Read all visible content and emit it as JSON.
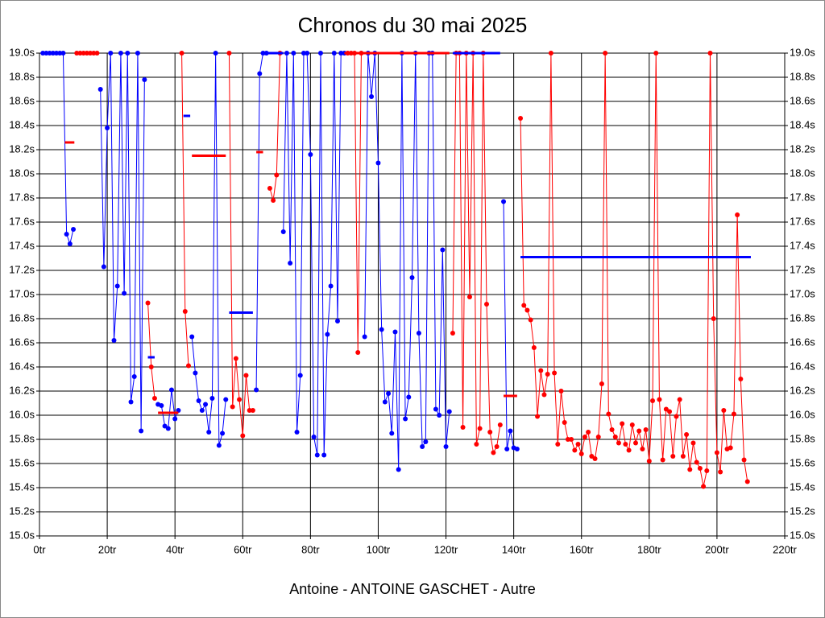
{
  "chart_data": {
    "type": "line",
    "title": "Chronos du 30 mai 2025",
    "x_label": "Antoine - ANTOINE GASCHET - Autre",
    "xlim": [
      0,
      220
    ],
    "ylim": [
      15.0,
      19.0
    ],
    "grid": true,
    "right_axis": true,
    "xticks": [
      {
        "value": 0,
        "label": "0tr"
      },
      {
        "value": 20,
        "label": "20tr"
      },
      {
        "value": 40,
        "label": "40tr"
      },
      {
        "value": 60,
        "label": "60tr"
      },
      {
        "value": 80,
        "label": "80tr"
      },
      {
        "value": 100,
        "label": "100tr"
      },
      {
        "value": 120,
        "label": "120tr"
      },
      {
        "value": 140,
        "label": "140tr"
      },
      {
        "value": 160,
        "label": "160tr"
      },
      {
        "value": 180,
        "label": "180tr"
      },
      {
        "value": 200,
        "label": "200tr"
      },
      {
        "value": 220,
        "label": "220tr"
      }
    ],
    "yticks": [
      {
        "value": 15.0,
        "label": "15.0s"
      },
      {
        "value": 15.2,
        "label": "15.2s"
      },
      {
        "value": 15.4,
        "label": "15.4s"
      },
      {
        "value": 15.6,
        "label": "15.6s"
      },
      {
        "value": 15.8,
        "label": "15.8s"
      },
      {
        "value": 16.0,
        "label": "16.0s"
      },
      {
        "value": 16.2,
        "label": "16.2s"
      },
      {
        "value": 16.4,
        "label": "16.4s"
      },
      {
        "value": 16.6,
        "label": "16.6s"
      },
      {
        "value": 16.8,
        "label": "16.8s"
      },
      {
        "value": 17.0,
        "label": "17.0s"
      },
      {
        "value": 17.2,
        "label": "17.2s"
      },
      {
        "value": 17.4,
        "label": "17.4s"
      },
      {
        "value": 17.6,
        "label": "17.6s"
      },
      {
        "value": 17.8,
        "label": "17.8s"
      },
      {
        "value": 18.0,
        "label": "18.0s"
      },
      {
        "value": 18.2,
        "label": "18.2s"
      },
      {
        "value": 18.4,
        "label": "18.4s"
      },
      {
        "value": 18.6,
        "label": "18.6s"
      },
      {
        "value": 18.8,
        "label": "18.8s"
      },
      {
        "value": 19.0,
        "label": "19.0s"
      }
    ],
    "series": [
      {
        "color": "#0000ff",
        "x": [
          1,
          2,
          3,
          4,
          5,
          6,
          7,
          8,
          9,
          10
        ],
        "values": [
          19,
          19,
          19,
          19,
          19,
          19,
          19,
          17.5,
          17.42,
          17.54
        ]
      },
      {
        "color": "#ff0000",
        "x": [
          11,
          12,
          13,
          14,
          15,
          16,
          17
        ],
        "values": [
          19,
          19,
          19,
          19,
          19,
          19,
          19
        ]
      },
      {
        "color": "#0000ff",
        "x": [
          18,
          19,
          20,
          21,
          22,
          23,
          24,
          25,
          26,
          27,
          28,
          29,
          30,
          31
        ],
        "values": [
          18.7,
          17.23,
          18.38,
          19,
          16.62,
          17.07,
          19,
          17.01,
          19,
          16.11,
          16.32,
          19,
          15.87,
          18.78
        ]
      },
      {
        "color": "#ff0000",
        "x": [
          32,
          33,
          34
        ],
        "values": [
          16.93,
          16.4,
          16.14
        ]
      },
      {
        "color": "#0000ff",
        "x": [
          35,
          36,
          37,
          38,
          39,
          40,
          41
        ],
        "values": [
          16.09,
          16.08,
          15.91,
          15.89,
          16.21,
          15.97,
          16.04
        ]
      },
      {
        "color": "#ff0000",
        "x": [
          42,
          43,
          44
        ],
        "values": [
          19,
          16.86,
          16.41
        ]
      },
      {
        "color": "#0000ff",
        "x": [
          45,
          46,
          47,
          48,
          49,
          50,
          51,
          52,
          53,
          54,
          55
        ],
        "values": [
          16.65,
          16.35,
          16.12,
          16.04,
          16.09,
          15.86,
          16.14,
          19,
          15.75,
          15.85,
          16.13
        ]
      },
      {
        "color": "#ff0000",
        "x": [
          56,
          57,
          58,
          59,
          60,
          61,
          62,
          63
        ],
        "values": [
          19,
          16.07,
          16.47,
          16.13,
          15.83,
          16.33,
          16.04,
          16.04
        ]
      },
      {
        "color": "#0000ff",
        "x": [
          64,
          65,
          66,
          67
        ],
        "values": [
          16.21,
          18.83,
          19,
          19
        ]
      },
      {
        "color": "#ff0000",
        "x": [
          68,
          69,
          70,
          71
        ],
        "values": [
          17.88,
          17.78,
          17.99,
          19
        ]
      },
      {
        "color": "#0000ff",
        "x": [
          72,
          73,
          74,
          75,
          76,
          77,
          78,
          79,
          80,
          81,
          82,
          83,
          84,
          85,
          86,
          87,
          88,
          89,
          90
        ],
        "values": [
          17.52,
          19,
          17.26,
          19,
          15.86,
          16.33,
          19,
          19,
          18.16,
          15.82,
          15.67,
          19,
          15.67,
          16.67,
          17.07,
          19,
          16.78,
          19,
          19
        ]
      },
      {
        "color": "#ff0000",
        "x": [
          91,
          92,
          93,
          94,
          95
        ],
        "values": [
          19,
          19,
          19,
          16.52,
          19
        ]
      },
      {
        "color": "#0000ff",
        "x": [
          96,
          97,
          98,
          99,
          100,
          101,
          102,
          103,
          104,
          105,
          106,
          107,
          108,
          109,
          110,
          111,
          112,
          113,
          114,
          115,
          116,
          117,
          118,
          119,
          120,
          121
        ],
        "values": [
          16.65,
          19,
          18.64,
          19,
          18.09,
          16.71,
          16.11,
          16.18,
          15.85,
          16.69,
          15.55,
          19,
          15.97,
          16.15,
          17.14,
          19,
          16.68,
          15.74,
          15.78,
          19,
          19,
          16.05,
          16.0,
          17.37,
          15.74,
          16.03
        ]
      },
      {
        "color": "#ff0000",
        "x": [
          122,
          123,
          124,
          125,
          126,
          127,
          128,
          129,
          130,
          131,
          132,
          133,
          134,
          135,
          136
        ],
        "values": [
          16.68,
          19,
          19,
          15.9,
          19,
          16.98,
          19,
          15.76,
          15.89,
          19,
          16.92,
          15.86,
          15.69,
          15.74,
          15.92
        ]
      },
      {
        "color": "#0000ff",
        "x": [
          137,
          138,
          139,
          140,
          141
        ],
        "values": [
          17.77,
          15.72,
          15.87,
          15.73,
          15.72
        ]
      },
      {
        "color": "#ff0000",
        "x": [
          142,
          143,
          144,
          145,
          146,
          147,
          148,
          149,
          150,
          151,
          152,
          153,
          154,
          155,
          156,
          157,
          158,
          159,
          160,
          161,
          162,
          163,
          164,
          165,
          166,
          167,
          168,
          169,
          170,
          171,
          172,
          173,
          174,
          175,
          176,
          177,
          178,
          179,
          180,
          181,
          182,
          183,
          184,
          185,
          186,
          187,
          188,
          189,
          190,
          191,
          192,
          193,
          194,
          195,
          196,
          197,
          198,
          199,
          200,
          201,
          202,
          203,
          204,
          205,
          206,
          207,
          208,
          209
        ],
        "values": [
          18.46,
          16.91,
          16.87,
          16.79,
          16.56,
          15.99,
          16.37,
          16.17,
          16.34,
          19,
          16.35,
          15.76,
          16.2,
          15.94,
          15.8,
          15.8,
          15.71,
          15.76,
          15.68,
          15.82,
          15.86,
          15.66,
          15.64,
          15.82,
          16.26,
          19,
          16.01,
          15.88,
          15.82,
          15.77,
          15.93,
          15.76,
          15.71,
          15.92,
          15.77,
          15.87,
          15.72,
          15.88,
          15.62,
          16.12,
          19,
          16.13,
          15.63,
          16.05,
          16.03,
          15.66,
          15.99,
          16.13,
          15.66,
          15.84,
          15.55,
          15.77,
          15.61,
          15.56,
          15.41,
          15.54,
          19,
          16.8,
          15.69,
          15.53,
          16.04,
          15.72,
          15.73,
          16.01,
          17.66,
          16.3,
          15.63,
          15.45
        ]
      }
    ],
    "mean_lines": [
      {
        "color": "#ff0000",
        "x": [
          7.5,
          10.3
        ],
        "value": 18.26
      },
      {
        "color": "#0000ff",
        "x": [
          32,
          34
        ],
        "value": 16.48
      },
      {
        "color": "#ff0000",
        "x": [
          35,
          41
        ],
        "value": 16.02
      },
      {
        "color": "#0000ff",
        "x": [
          42.5,
          44.5
        ],
        "value": 18.48
      },
      {
        "color": "#ff0000",
        "x": [
          45,
          55
        ],
        "value": 18.15
      },
      {
        "color": "#0000ff",
        "x": [
          56,
          63
        ],
        "value": 16.85
      },
      {
        "color": "#ff0000",
        "x": [
          64,
          66
        ],
        "value": 18.18
      },
      {
        "color": "#0000ff",
        "x": [
          67,
          72
        ],
        "value": 19.0
      },
      {
        "color": "#ff0000",
        "x": [
          90,
          121
        ],
        "value": 19.0
      },
      {
        "color": "#0000ff",
        "x": [
          122,
          136
        ],
        "value": 19.0
      },
      {
        "color": "#ff0000",
        "x": [
          137,
          141
        ],
        "value": 16.16
      },
      {
        "color": "#0000ff",
        "x": [
          142,
          210
        ],
        "value": 17.31
      }
    ]
  }
}
